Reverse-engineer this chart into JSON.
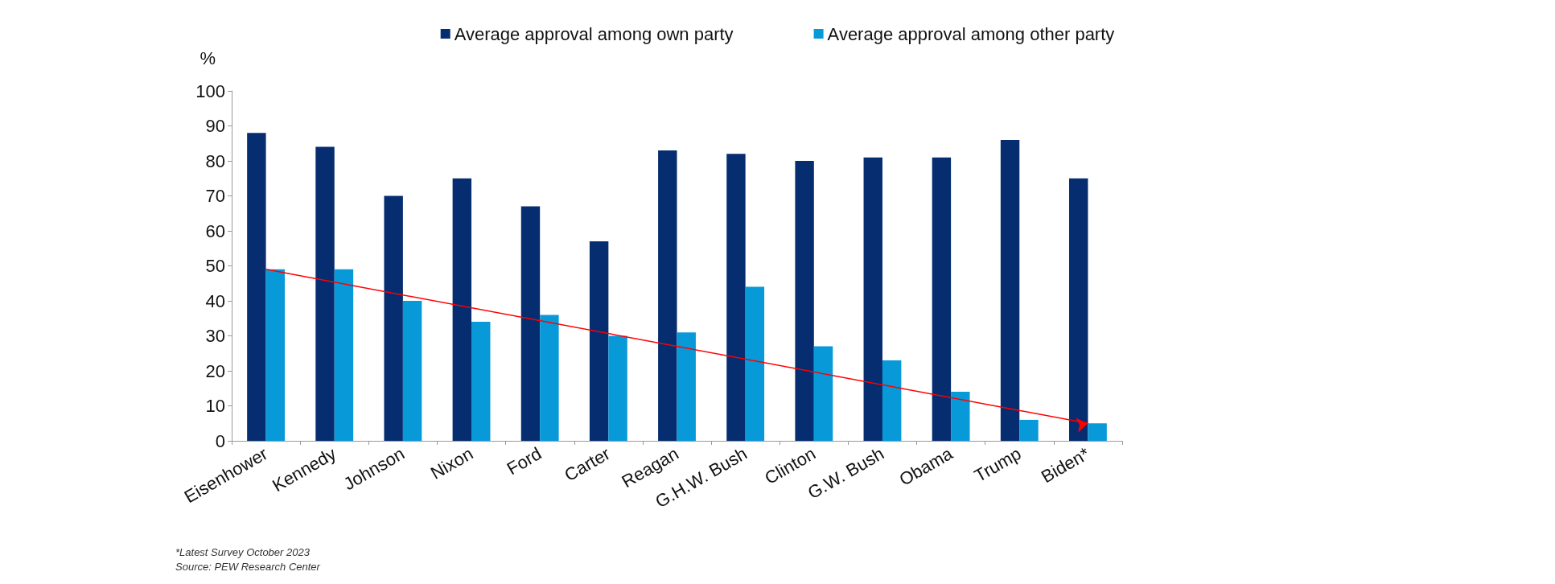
{
  "chart_data": {
    "type": "bar",
    "ylabel": "%",
    "categories": [
      "Eisenhower",
      "Kennedy",
      "Johnson",
      "Nixon",
      "Ford",
      "Carter",
      "Reagan",
      "G.H.W. Bush",
      "Clinton",
      "G.W. Bush",
      "Obama",
      "Trump",
      "Biden*"
    ],
    "series": [
      {
        "name": "Average approval among own party",
        "color": "#062d70",
        "values": [
          88,
          84,
          70,
          75,
          67,
          57,
          83,
          82,
          80,
          81,
          81,
          86,
          75
        ]
      },
      {
        "name": "Average approval among other party",
        "color": "#0899d8",
        "values": [
          49,
          49,
          40,
          34,
          36,
          30,
          31,
          44,
          27,
          23,
          14,
          6,
          5
        ]
      },
      {
        "type": "line",
        "color": "#ff0000",
        "x": [
          "Eisenhower",
          "Biden*"
        ],
        "values": [
          49,
          5
        ]
      }
    ],
    "ylim": [
      0,
      100
    ],
    "yticks": [
      0,
      10,
      20,
      30,
      40,
      50,
      60,
      70,
      80,
      90,
      100
    ],
    "grid": false,
    "legend": "top",
    "annotations": [
      "*Latest Survey October 2023",
      "Source: PEW Research Center"
    ]
  }
}
